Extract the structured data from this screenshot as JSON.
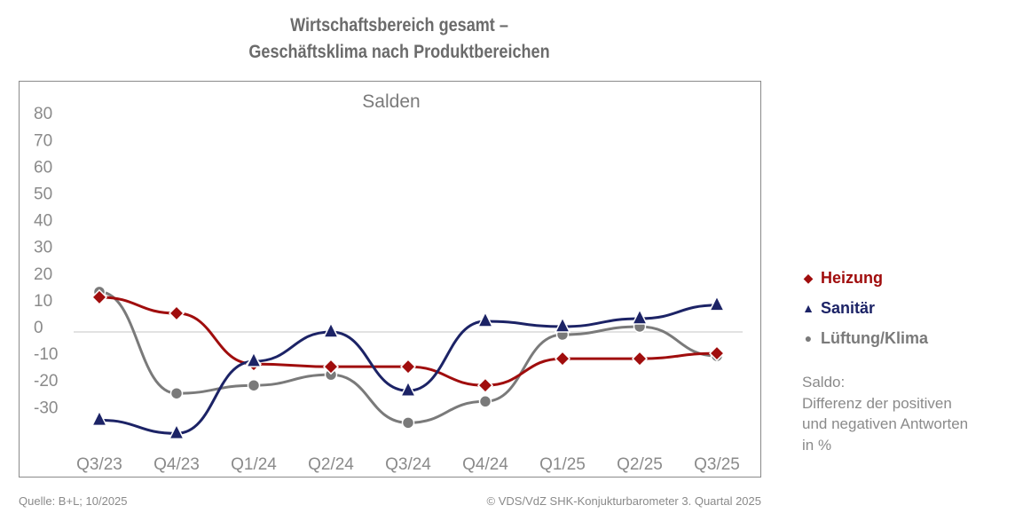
{
  "title_line1": "Wirtschaftsbereich gesamt –",
  "title_line2": "Geschäftsklima nach Produktbereichen",
  "note": {
    "line1": "Saldo:",
    "line2": "Differenz der positiven",
    "line3": "und negativen Antworten",
    "line4": "in %"
  },
  "footer": {
    "source": "Quelle: B+L; 10/2025",
    "copyright": "© VDS/VdZ SHK-Konjukturbarometer 3. Quartal 2025"
  },
  "legend": [
    {
      "label": "Heizung",
      "marker": "diamond",
      "glyph": "◆",
      "color": "#a00d0d"
    },
    {
      "label": "Sanitär",
      "marker": "triangle",
      "glyph": "▲",
      "color": "#1c2366"
    },
    {
      "label": "Lüftung/Klima",
      "marker": "circle",
      "glyph": "●",
      "color": "#7a7a7a"
    }
  ],
  "chart_data": {
    "type": "line",
    "title": "Wirtschaftsbereich gesamt – Geschäftsklima nach Produktbereichen",
    "subtitle": "Salden",
    "xlabel": "",
    "ylabel": "",
    "categories": [
      "Q3/23",
      "Q4/23",
      "Q1/24",
      "Q2/24",
      "Q3/24",
      "Q4/24",
      "Q1/25",
      "Q2/25",
      "Q3/25"
    ],
    "yticks": [
      80,
      70,
      60,
      50,
      40,
      30,
      20,
      10,
      0,
      -10,
      -20,
      -30
    ],
    "ylim": [
      -40,
      80
    ],
    "grid": "zero-line only",
    "legend_position": "right",
    "smooth": true,
    "series": [
      {
        "name": "Heizung",
        "color": "#a00d0d",
        "marker": "diamond",
        "values": [
          13,
          7,
          -12,
          -13,
          -13,
          -20,
          -10,
          -10,
          -8
        ]
      },
      {
        "name": "Sanitär",
        "color": "#1c2366",
        "marker": "triangle",
        "values": [
          -33,
          -38,
          -11,
          0,
          -22,
          4,
          2,
          5,
          10
        ]
      },
      {
        "name": "Lüftung/Klima",
        "color": "#7a7a7a",
        "marker": "circle",
        "values": [
          15,
          -23,
          -20,
          -16,
          -34,
          -26,
          -1,
          2,
          -9
        ]
      }
    ]
  }
}
